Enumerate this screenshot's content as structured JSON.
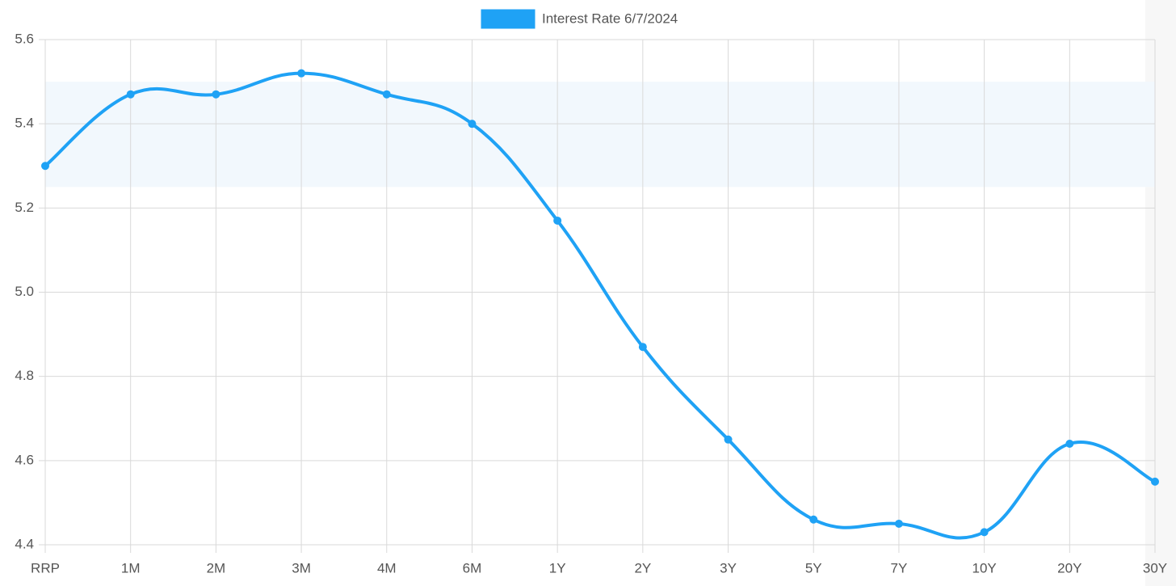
{
  "chart_data": {
    "type": "line",
    "categories": [
      "RRP",
      "1M",
      "2M",
      "3M",
      "4M",
      "6M",
      "1Y",
      "2Y",
      "3Y",
      "5Y",
      "7Y",
      "10Y",
      "20Y",
      "30Y"
    ],
    "series": [
      {
        "name": "Interest Rate 6/7/2024",
        "color": "#1fa2f5",
        "values": [
          5.3,
          5.47,
          5.47,
          5.52,
          5.47,
          5.4,
          5.17,
          4.87,
          4.65,
          4.46,
          4.45,
          4.43,
          4.64,
          4.55
        ]
      }
    ],
    "band": [
      5.25,
      5.5
    ],
    "band_color": "#f2f8fd",
    "ylim": [
      4.4,
      5.6
    ],
    "yticks": [
      4.4,
      4.6,
      4.8,
      {
        "value": 5,
        "label": "5.0"
      },
      5.2,
      5.4,
      5.6
    ],
    "grid": true,
    "legend": "top"
  }
}
